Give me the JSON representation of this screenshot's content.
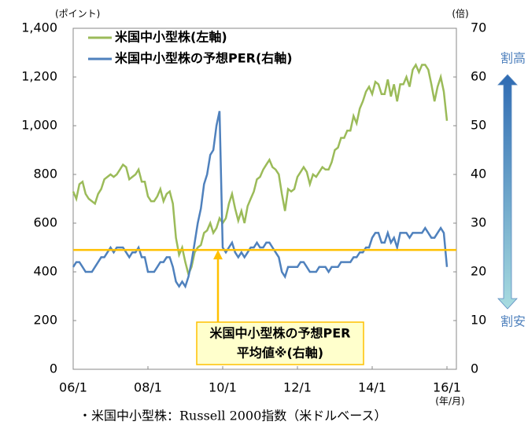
{
  "chart_data": {
    "type": "line",
    "y_unit_label": "(ポイント)",
    "y2_unit_label": "(倍)",
    "x_unit_label": "(年/月)",
    "x": [
      "06/1",
      "06/2",
      "06/3",
      "06/4",
      "06/5",
      "06/6",
      "06/7",
      "06/8",
      "06/9",
      "06/10",
      "06/11",
      "06/12",
      "07/1",
      "07/2",
      "07/3",
      "07/4",
      "07/5",
      "07/6",
      "07/7",
      "07/8",
      "07/9",
      "07/10",
      "07/11",
      "07/12",
      "08/1",
      "08/2",
      "08/3",
      "08/4",
      "08/5",
      "08/6",
      "08/7",
      "08/8",
      "08/9",
      "08/10",
      "08/11",
      "08/12",
      "09/1",
      "09/2",
      "09/3",
      "09/4",
      "09/5",
      "09/6",
      "09/7",
      "09/8",
      "09/9",
      "09/10",
      "09/11",
      "09/12",
      "10/1",
      "10/2",
      "10/3",
      "10/4",
      "10/5",
      "10/6",
      "10/7",
      "10/8",
      "10/9",
      "10/10",
      "10/11",
      "10/12",
      "11/1",
      "11/2",
      "11/3",
      "11/4",
      "11/5",
      "11/6",
      "11/7",
      "11/8",
      "11/9",
      "11/10",
      "11/11",
      "11/12",
      "12/1",
      "12/2",
      "12/3",
      "12/4",
      "12/5",
      "12/6",
      "12/7",
      "12/8",
      "12/9",
      "12/10",
      "12/11",
      "12/12",
      "13/1",
      "13/2",
      "13/3",
      "13/4",
      "13/5",
      "13/6",
      "13/7",
      "13/8",
      "13/9",
      "13/10",
      "13/11",
      "13/12",
      "14/1",
      "14/2",
      "14/3",
      "14/4",
      "14/5",
      "14/6",
      "14/7",
      "14/8",
      "14/9",
      "14/10",
      "14/11",
      "14/12",
      "15/1",
      "15/2",
      "15/3",
      "15/4",
      "15/5",
      "15/6",
      "15/7",
      "15/8",
      "15/9",
      "15/10",
      "15/11",
      "15/12",
      "16/1"
    ],
    "xticks": [
      "06/1",
      "08/1",
      "10/1",
      "12/1",
      "14/1",
      "16/1"
    ],
    "ylim": [
      0,
      1400
    ],
    "yticks": [
      0,
      200,
      400,
      600,
      800,
      {
        "value": 1000,
        "label": "1,000"
      },
      {
        "value": 1200,
        "label": "1,200"
      },
      {
        "value": 1400,
        "label": "1,400"
      }
    ],
    "y2lim": [
      0,
      70
    ],
    "y2ticks": [
      0,
      10,
      20,
      30,
      40,
      50,
      60,
      70
    ],
    "grid": false,
    "legend": "upper left",
    "series": [
      {
        "name": "米国中小型株(左軸)",
        "color": "#9bbb59",
        "axis": "y",
        "values": [
          730,
          700,
          760,
          770,
          720,
          700,
          690,
          680,
          720,
          740,
          780,
          790,
          800,
          790,
          800,
          820,
          840,
          830,
          780,
          790,
          800,
          820,
          770,
          770,
          710,
          690,
          690,
          710,
          740,
          690,
          720,
          730,
          680,
          540,
          470,
          500,
          440,
          390,
          420,
          480,
          500,
          510,
          560,
          570,
          600,
          560,
          580,
          620,
          600,
          620,
          680,
          720,
          660,
          610,
          650,
          600,
          670,
          700,
          730,
          780,
          790,
          820,
          840,
          860,
          830,
          820,
          800,
          720,
          650,
          740,
          730,
          740,
          790,
          810,
          830,
          810,
          760,
          800,
          790,
          810,
          830,
          820,
          820,
          850,
          900,
          910,
          950,
          950,
          980,
          980,
          1040,
          1010,
          1070,
          1100,
          1140,
          1160,
          1130,
          1180,
          1170,
          1130,
          1130,
          1190,
          1120,
          1170,
          1100,
          1170,
          1170,
          1200,
          1160,
          1230,
          1250,
          1220,
          1250,
          1250,
          1230,
          1170,
          1100,
          1160,
          1200,
          1140,
          1020
        ]
      },
      {
        "name": "米国中小型株の予想PER(右軸)",
        "color": "#4f81bd",
        "axis": "y2",
        "values": [
          21,
          22,
          22,
          21,
          20,
          20,
          20,
          21,
          22,
          23,
          23,
          24,
          25,
          24,
          25,
          25,
          25,
          24,
          23,
          24,
          24,
          25,
          23,
          23,
          20,
          20,
          20,
          21,
          22,
          22,
          23,
          23,
          21,
          18,
          17,
          18,
          17,
          19,
          22,
          26,
          30,
          33,
          38,
          40,
          44,
          45,
          50,
          53,
          25,
          24,
          25,
          26,
          24,
          23,
          24,
          23,
          24,
          25,
          25,
          26,
          25,
          25,
          26,
          26,
          25,
          24,
          23,
          20,
          19,
          21,
          21,
          21,
          21,
          22,
          22,
          21,
          20,
          20,
          20,
          21,
          21,
          21,
          20,
          21,
          21,
          21,
          22,
          22,
          22,
          22,
          23,
          23,
          24,
          24,
          25,
          25,
          27,
          28,
          28,
          26,
          26,
          28,
          26,
          27,
          25,
          28,
          28,
          28,
          27,
          28,
          28,
          28,
          28,
          29,
          28,
          27,
          27,
          28,
          29,
          28,
          21
        ]
      }
    ],
    "reference_line": {
      "value": 24.5,
      "axis": "y2",
      "color": "#ffc000",
      "label": [
        "米国中小型株の予想PER",
        "平均値※(右軸)"
      ]
    },
    "side_scale": {
      "top": "割高",
      "bottom": "割安"
    },
    "footnote": "・米国中小型株：Russell 2000指数（米ドルベース）"
  }
}
